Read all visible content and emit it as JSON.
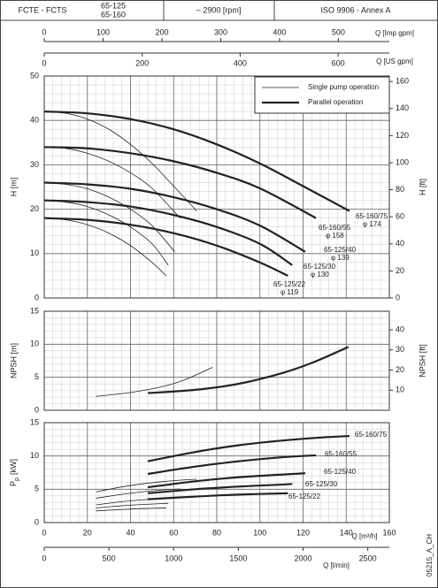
{
  "header": {
    "series": "FCTE - FCTS",
    "models": [
      "65-125",
      "65-160"
    ],
    "speed": "~ 2900 [rpm]",
    "standard": "ISO 9906 - Annex A"
  },
  "code": "05215_A_CH",
  "chart_data": [
    {
      "type": "line",
      "ylabel": "H [m]",
      "y2label": "H [ft]",
      "xlim": [
        0,
        160
      ],
      "xticks": [
        0,
        20,
        40,
        60,
        80,
        100,
        120,
        140,
        160
      ],
      "ylim": [
        0,
        50
      ],
      "yticks": [
        0,
        10,
        20,
        30,
        40,
        50
      ],
      "y2lim": [
        0,
        164.04
      ],
      "y2ticks": [
        0,
        20,
        40,
        60,
        80,
        100,
        120,
        140,
        160
      ],
      "grid": true,
      "top_axes": [
        {
          "label": "Q [Imp gpm]",
          "xlim": [
            0,
            586.6
          ],
          "xticks": [
            0,
            100,
            200,
            300,
            400,
            500
          ]
        },
        {
          "label": "Q [US gpm]",
          "xlim": [
            0,
            704.5
          ],
          "xticks": [
            0,
            200,
            400,
            600
          ]
        }
      ],
      "legend": [
        "Single pump operation",
        "Parallel operation"
      ],
      "series": [
        {
          "name": "65-160/75",
          "impeller": "φ 174",
          "single": {
            "x": [
              0,
              10,
              20,
              30,
              40,
              50,
              60,
              70.75
            ],
            "values": [
              42,
              41.6,
              40.3,
              38,
              34.6,
              30.3,
              25.2,
              19.6
            ]
          },
          "parallel": {
            "x": [
              0,
              20,
              40,
              60,
              80,
              100,
              120,
              141.5
            ],
            "values": [
              42,
              41.6,
              40.3,
              38,
              34.6,
              30.3,
              25.2,
              19.6
            ]
          }
        },
        {
          "name": "65-160/55",
          "impeller": "φ 158",
          "single": {
            "x": [
              0,
              10,
              20,
              30,
              40,
              50,
              63
            ],
            "values": [
              34,
              33.7,
              32.6,
              30.8,
              28.2,
              24.7,
              18
            ]
          },
          "parallel": {
            "x": [
              0,
              20,
              40,
              60,
              80,
              100,
              126
            ],
            "values": [
              34,
              33.7,
              32.6,
              30.8,
              28.2,
              24.7,
              18
            ]
          }
        },
        {
          "name": "65-125/40",
          "impeller": "φ 139",
          "single": {
            "x": [
              0,
              10,
              20,
              30,
              40,
              50,
              60.5
            ],
            "values": [
              26,
              25.6,
              24.6,
              22.7,
              20,
              16.3,
              10.4
            ]
          },
          "parallel": {
            "x": [
              0,
              20,
              40,
              60,
              80,
              100,
              121
            ],
            "values": [
              26,
              25.6,
              24.6,
              22.7,
              20,
              16.3,
              10.4
            ]
          }
        },
        {
          "name": "65-125/30",
          "impeller": "φ 130",
          "single": {
            "x": [
              0,
              10,
              20,
              30,
              40,
              50,
              57.5
            ],
            "values": [
              22,
              21.6,
              20.6,
              18.7,
              16,
              12.2,
              7.4
            ]
          },
          "parallel": {
            "x": [
              0,
              20,
              40,
              60,
              80,
              100,
              115
            ],
            "values": [
              22,
              21.6,
              20.6,
              18.7,
              16,
              12.2,
              7.4
            ]
          }
        },
        {
          "name": "65-125/22",
          "impeller": "φ 119",
          "single": {
            "x": [
              0,
              10,
              20,
              30,
              40,
              50,
              56.5
            ],
            "values": [
              18,
              17.6,
              16.5,
              14.6,
              11.8,
              8,
              5
            ]
          },
          "parallel": {
            "x": [
              0,
              20,
              40,
              60,
              80,
              100,
              113
            ],
            "values": [
              18,
              17.6,
              16.5,
              14.6,
              11.8,
              8,
              5
            ]
          }
        }
      ]
    },
    {
      "type": "line",
      "ylabel": "NPSH [m]",
      "y2label": "NPSH [ft]",
      "xlim": [
        0,
        160
      ],
      "xticks": [
        0,
        20,
        40,
        60,
        80,
        100,
        120,
        140,
        160
      ],
      "ylim": [
        0,
        15
      ],
      "yticks": [
        0,
        5,
        10,
        15
      ],
      "y2lim": [
        0,
        49.21
      ],
      "y2ticks": [
        10,
        20,
        30,
        40
      ],
      "grid": true,
      "series": [
        {
          "single": {
            "x": [
              24,
              40,
              55,
              65,
              78
            ],
            "values": [
              2.1,
              2.7,
              3.6,
              4.6,
              6.5
            ]
          },
          "parallel": {
            "x": [
              48,
              70,
              90,
              110,
              125,
              141
            ],
            "values": [
              2.6,
              3.1,
              4.0,
              5.6,
              7.3,
              9.6
            ]
          }
        }
      ]
    },
    {
      "type": "line",
      "ylabel": [
        "P",
        "p",
        "[kW]"
      ],
      "xlabel": "Q [m³/h]",
      "xlim": [
        0,
        160
      ],
      "xticks": [
        0,
        20,
        40,
        60,
        80,
        100,
        120,
        140,
        160
      ],
      "ylim": [
        0,
        15
      ],
      "yticks": [
        0,
        5,
        10,
        15
      ],
      "grid": true,
      "bottom_axis": {
        "label": "Q [l/min]",
        "xlim": [
          0,
          2666.7
        ],
        "xticks": [
          0,
          500,
          1000,
          1500,
          2000,
          2500
        ]
      },
      "series": [
        {
          "name": "65-160/75",
          "single": {
            "x": [
              24,
              35,
              45,
              55,
              65,
              70.75
            ],
            "values": [
              4.6,
              5.3,
              5.8,
              6.15,
              6.4,
              6.5
            ]
          },
          "parallel": {
            "x": [
              48,
              70,
              90,
              110,
              130,
              141.5
            ],
            "values": [
              9.2,
              10.6,
              11.6,
              12.3,
              12.8,
              13
            ]
          }
        },
        {
          "name": "65-160/55",
          "single": {
            "x": [
              24,
              35,
              45,
              55,
              63
            ],
            "values": [
              3.65,
              4.2,
              4.6,
              4.9,
              5.05
            ]
          },
          "parallel": {
            "x": [
              48,
              70,
              90,
              110,
              126
            ],
            "values": [
              7.3,
              8.4,
              9.2,
              9.8,
              10.1
            ]
          }
        },
        {
          "name": "65-125/40",
          "single": {
            "x": [
              24,
              35,
              45,
              55,
              60.5
            ],
            "values": [
              2.65,
              3.1,
              3.4,
              3.6,
              3.7
            ]
          },
          "parallel": {
            "x": [
              48,
              70,
              90,
              110,
              121
            ],
            "values": [
              5.3,
              6.2,
              6.8,
              7.2,
              7.4
            ]
          }
        },
        {
          "name": "65-125/30",
          "single": {
            "x": [
              24,
              35,
              45,
              55,
              57.5
            ],
            "values": [
              2.2,
              2.5,
              2.7,
              2.85,
              2.9
            ]
          },
          "parallel": {
            "x": [
              48,
              70,
              90,
              110,
              115
            ],
            "values": [
              4.4,
              5.0,
              5.4,
              5.7,
              5.8
            ]
          }
        },
        {
          "name": "65-125/22",
          "single": {
            "x": [
              24,
              35,
              45,
              56.5
            ],
            "values": [
              1.75,
              1.95,
              2.1,
              2.2
            ]
          },
          "parallel": {
            "x": [
              48,
              70,
              90,
              113
            ],
            "values": [
              3.5,
              3.9,
              4.2,
              4.4
            ]
          }
        }
      ]
    }
  ]
}
